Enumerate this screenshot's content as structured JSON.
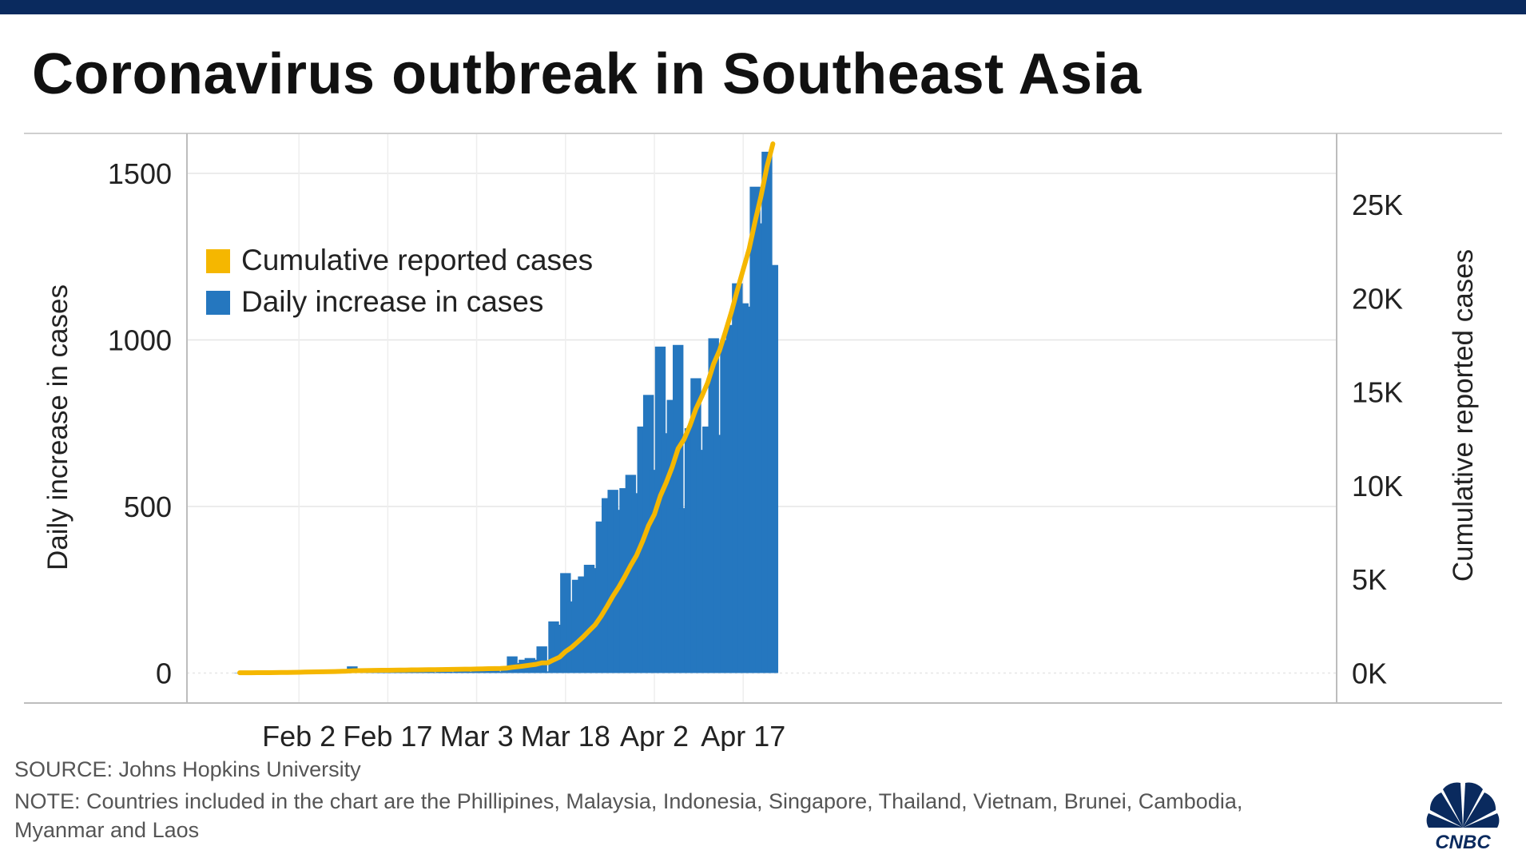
{
  "header": {
    "title": "Coronavirus outbreak in Southeast Asia"
  },
  "footer": {
    "source": "SOURCE: Johns Hopkins University",
    "note_line1": "NOTE: Countries included in the chart are the Phillipines, Malaysia, Indonesia, Singapore, Thailand, Vietnam, Brunei, Cambodia,",
    "note_line2": "Myanmar and Laos"
  },
  "logo": {
    "text": "CNBC",
    "icon": "nbc-peacock-icon"
  },
  "colors": {
    "bars": "#2577bf",
    "line": "#f5b700",
    "brand_bar": "#0a2a5e"
  },
  "chart_data": {
    "type": "bar",
    "title": "Coronavirus outbreak in Southeast Asia",
    "ylabel": "Daily increase in cases",
    "y2label": "Cumulative reported cases",
    "ylim": [
      -90,
      1620
    ],
    "y2lim": [
      -1600,
      28800
    ],
    "yticks": [
      0,
      500,
      1000,
      1500
    ],
    "y2ticks": [
      0,
      5000,
      10000,
      15000,
      20000,
      25000
    ],
    "y2ticklabels": [
      "0K",
      "5K",
      "10K",
      "15K",
      "20K",
      "25K"
    ],
    "xticks": [
      {
        "date": "2020-02-02",
        "label": "Feb 2"
      },
      {
        "date": "2020-02-17",
        "label": "Feb 17"
      },
      {
        "date": "2020-03-03",
        "label": "Mar 3"
      },
      {
        "date": "2020-03-18",
        "label": "Mar 18"
      },
      {
        "date": "2020-04-02",
        "label": "Apr 2"
      },
      {
        "date": "2020-04-17",
        "label": "Apr 17"
      }
    ],
    "grid": true,
    "legend": "upper-left",
    "series": [
      {
        "name": "Daily increase in cases",
        "type": "bar",
        "start_date": "2020-01-23",
        "values": [
          1,
          0,
          2,
          1,
          2,
          2,
          3,
          4,
          3,
          5,
          6,
          8,
          5,
          6,
          4,
          8,
          6,
          10,
          9,
          20,
          8,
          7,
          4,
          6,
          3,
          2,
          3,
          5,
          4,
          6,
          4,
          3,
          5,
          2,
          6,
          4,
          3,
          5,
          6,
          4,
          8,
          8,
          6,
          10,
          5,
          12,
          50,
          30,
          40,
          45,
          40,
          80,
          5,
          155,
          145,
          300,
          215,
          280,
          290,
          325,
          315,
          455,
          525,
          550,
          490,
          555,
          595,
          540,
          740,
          835,
          610,
          980,
          720,
          820,
          985,
          495,
          735,
          885,
          670,
          740,
          1005,
          715,
          1000,
          1045,
          1170,
          1110,
          1100,
          1460,
          1350,
          1565,
          1225
        ]
      },
      {
        "name": "Cumulative reported cases",
        "type": "line",
        "start_date": "2020-01-23",
        "values": [
          14,
          15,
          17,
          18,
          20,
          22,
          25,
          29,
          32,
          37,
          43,
          51,
          56,
          62,
          66,
          74,
          80,
          90,
          99,
          119,
          127,
          134,
          138,
          144,
          147,
          149,
          152,
          157,
          161,
          167,
          171,
          174,
          179,
          181,
          187,
          191,
          194,
          199,
          205,
          209,
          217,
          225,
          231,
          241,
          246,
          258,
          308,
          338,
          378,
          423,
          463,
          543,
          548,
          703,
          848,
          1148,
          1363,
          1643,
          1933,
          2258,
          2573,
          3028,
          3553,
          4103,
          4593,
          5148,
          5743,
          6283,
          7023,
          7858,
          8468,
          9448,
          10168,
          10988,
          11973,
          12468,
          13203,
          14088,
          14758,
          15498,
          16503,
          17218,
          18218,
          19263,
          20433,
          21543,
          22643,
          24103,
          25453,
          27018,
          28243
        ]
      }
    ]
  }
}
